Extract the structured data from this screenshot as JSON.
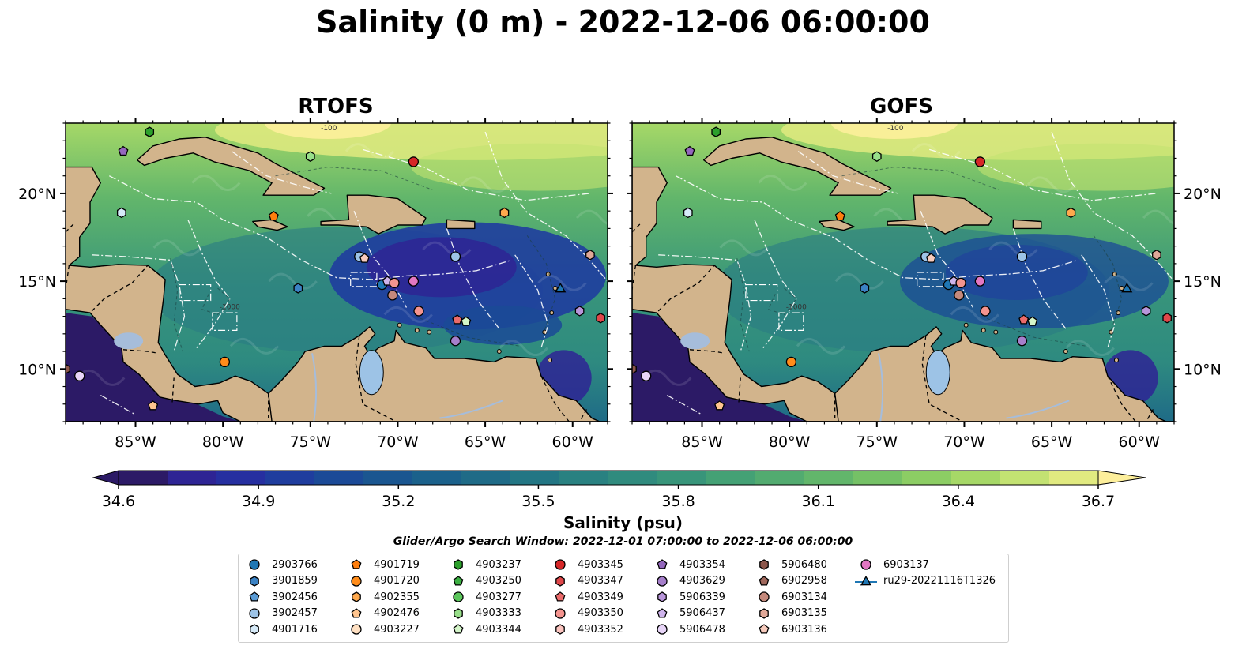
{
  "title": "Salinity (0 m) - 2022-12-06 06:00:00",
  "panels": [
    {
      "title": "RTOFS",
      "low_salinity_core": true
    },
    {
      "title": "GOFS",
      "low_salinity_core": false
    }
  ],
  "map": {
    "lon_range": [
      -89,
      -58
    ],
    "lat_range": [
      7,
      24
    ],
    "lon_ticks": [
      {
        "value": -85,
        "label": "85°W"
      },
      {
        "value": -80,
        "label": "80°W"
      },
      {
        "value": -75,
        "label": "75°W"
      },
      {
        "value": -70,
        "label": "70°W"
      },
      {
        "value": -65,
        "label": "65°W"
      },
      {
        "value": -60,
        "label": "60°W"
      }
    ],
    "lat_ticks": [
      {
        "value": 20,
        "label": "20°N"
      },
      {
        "value": 15,
        "label": "15°N"
      },
      {
        "value": 10,
        "label": "10°N"
      }
    ],
    "land_color": "#d2b48c",
    "coastline_color": "#000000",
    "river_color": "#a6bddb",
    "eez_boundary_color": "#ffffff",
    "contour_labels": [
      "-100",
      "-1000"
    ]
  },
  "colorbar": {
    "label": "Salinity (psu)",
    "min": 34.6,
    "max": 36.7,
    "ticks": [
      "34.6",
      "34.9",
      "35.2",
      "35.5",
      "35.8",
      "36.1",
      "36.4",
      "36.7"
    ],
    "colors": [
      "#2c1a66",
      "#2e2494",
      "#262fa0",
      "#1f3d9e",
      "#1b4a97",
      "#1a5690",
      "#1b618b",
      "#1f6b87",
      "#237684",
      "#298181",
      "#308b7e",
      "#38957a",
      "#44a175",
      "#52ab70",
      "#62b66b",
      "#75c166",
      "#8ccd64",
      "#a6d867",
      "#c3e272",
      "#e1ea80"
    ],
    "extend_low_color": "#2c1a66",
    "extend_high_color": "#fdef9b"
  },
  "search_window": "Glider/Argo Search Window: 2022-12-01 07:00:00 to 2022-12-06 06:00:00",
  "legend": [
    {
      "label": "2903766",
      "shape": "circle",
      "color": "#1f77b4"
    },
    {
      "label": "3901859",
      "shape": "hexagon",
      "color": "#3b82c4"
    },
    {
      "label": "3902456",
      "shape": "pentagon",
      "color": "#5a9bd5"
    },
    {
      "label": "3902457",
      "shape": "circle",
      "color": "#9dc3e6"
    },
    {
      "label": "4901716",
      "shape": "hexagon",
      "color": "#d6eaf8"
    },
    {
      "label": "4901719",
      "shape": "pentagon",
      "color": "#ff7f0e"
    },
    {
      "label": "4901720",
      "shape": "circle",
      "color": "#ff8c1a"
    },
    {
      "label": "4902355",
      "shape": "hexagon",
      "color": "#ffa94d"
    },
    {
      "label": "4902476",
      "shape": "pentagon",
      "color": "#ffc58f"
    },
    {
      "label": "4903227",
      "shape": "circle",
      "color": "#ffe0c2"
    },
    {
      "label": "4903237",
      "shape": "hexagon",
      "color": "#2ca02c"
    },
    {
      "label": "4903250",
      "shape": "pentagon",
      "color": "#3cb043"
    },
    {
      "label": "4903277",
      "shape": "circle",
      "color": "#5cc65c"
    },
    {
      "label": "4903333",
      "shape": "hexagon",
      "color": "#98df8a"
    },
    {
      "label": "4903344",
      "shape": "pentagon",
      "color": "#d4f5c9"
    },
    {
      "label": "4903345",
      "shape": "circle",
      "color": "#d62728"
    },
    {
      "label": "4903347",
      "shape": "hexagon",
      "color": "#e0474a"
    },
    {
      "label": "4903349",
      "shape": "pentagon",
      "color": "#eb6b6b"
    },
    {
      "label": "4903350",
      "shape": "circle",
      "color": "#f4948f"
    },
    {
      "label": "4903352",
      "shape": "hexagon",
      "color": "#fbc4bf"
    },
    {
      "label": "4903354",
      "shape": "pentagon",
      "color": "#9467bd"
    },
    {
      "label": "4903629",
      "shape": "circle",
      "color": "#a67fcb"
    },
    {
      "label": "5906339",
      "shape": "hexagon",
      "color": "#b996da"
    },
    {
      "label": "5906437",
      "shape": "pentagon",
      "color": "#cfb4ec"
    },
    {
      "label": "5906478",
      "shape": "circle",
      "color": "#e8d5f8"
    },
    {
      "label": "5906480",
      "shape": "hexagon",
      "color": "#8c564b"
    },
    {
      "label": "6902958",
      "shape": "pentagon",
      "color": "#a0685c"
    },
    {
      "label": "6903134",
      "shape": "circle",
      "color": "#c4897c"
    },
    {
      "label": "6903135",
      "shape": "hexagon",
      "color": "#e0a898"
    },
    {
      "label": "6903136",
      "shape": "pentagon",
      "color": "#f7cbbd"
    },
    {
      "label": "6903137",
      "shape": "circle",
      "color": "#e377c2"
    },
    {
      "label": "ru29-20221116T1326",
      "shape": "triangle",
      "color": "#1f77b4",
      "line": true
    }
  ],
  "floats": [
    {
      "id": "4903237",
      "lon": -84.2,
      "lat": 23.5
    },
    {
      "id": "4903354",
      "lon": -85.7,
      "lat": 22.4
    },
    {
      "id": "4903333",
      "lon": -75.0,
      "lat": 22.1
    },
    {
      "id": "4903345",
      "lon": -69.1,
      "lat": 21.8
    },
    {
      "id": "4901716",
      "lon": -85.8,
      "lat": 18.9
    },
    {
      "id": "4901719",
      "lon": -77.1,
      "lat": 18.7
    },
    {
      "id": "4902355",
      "lon": -63.9,
      "lat": 18.9
    },
    {
      "id": "6903135",
      "lon": -59.0,
      "lat": 16.5
    },
    {
      "id": "3902457",
      "lon": -66.7,
      "lat": 16.4
    },
    {
      "id": "3902457",
      "lon": -72.2,
      "lat": 16.4
    },
    {
      "id": "6903136",
      "lon": -71.9,
      "lat": 16.3
    },
    {
      "id": "3901859",
      "lon": -75.7,
      "lat": 14.6
    },
    {
      "id": "2903766",
      "lon": -70.9,
      "lat": 14.8
    },
    {
      "id": "5906437",
      "lon": -70.6,
      "lat": 15.0
    },
    {
      "id": "4903350",
      "lon": -70.2,
      "lat": 14.9
    },
    {
      "id": "6903137",
      "lon": -69.1,
      "lat": 15.0
    },
    {
      "id": "6903134",
      "lon": -70.3,
      "lat": 14.2
    },
    {
      "id": "4903350",
      "lon": -68.8,
      "lat": 13.3
    },
    {
      "id": "4903349",
      "lon": -66.6,
      "lat": 12.8
    },
    {
      "id": "4903344",
      "lon": -66.1,
      "lat": 12.7
    },
    {
      "id": "4903629",
      "lon": -66.7,
      "lat": 11.6
    },
    {
      "id": "5906339",
      "lon": -59.6,
      "lat": 13.3
    },
    {
      "id": "4903347",
      "lon": -58.4,
      "lat": 12.9
    },
    {
      "id": "4901720",
      "lon": -79.9,
      "lat": 10.4
    },
    {
      "id": "5906480",
      "lon": -89.0,
      "lat": 10.0
    },
    {
      "id": "5906478",
      "lon": -88.2,
      "lat": 9.6
    },
    {
      "id": "4902476",
      "lon": -84.0,
      "lat": 7.9
    },
    {
      "id": "ru29-20221116T1326",
      "lon": -60.7,
      "lat": 14.6
    }
  ]
}
